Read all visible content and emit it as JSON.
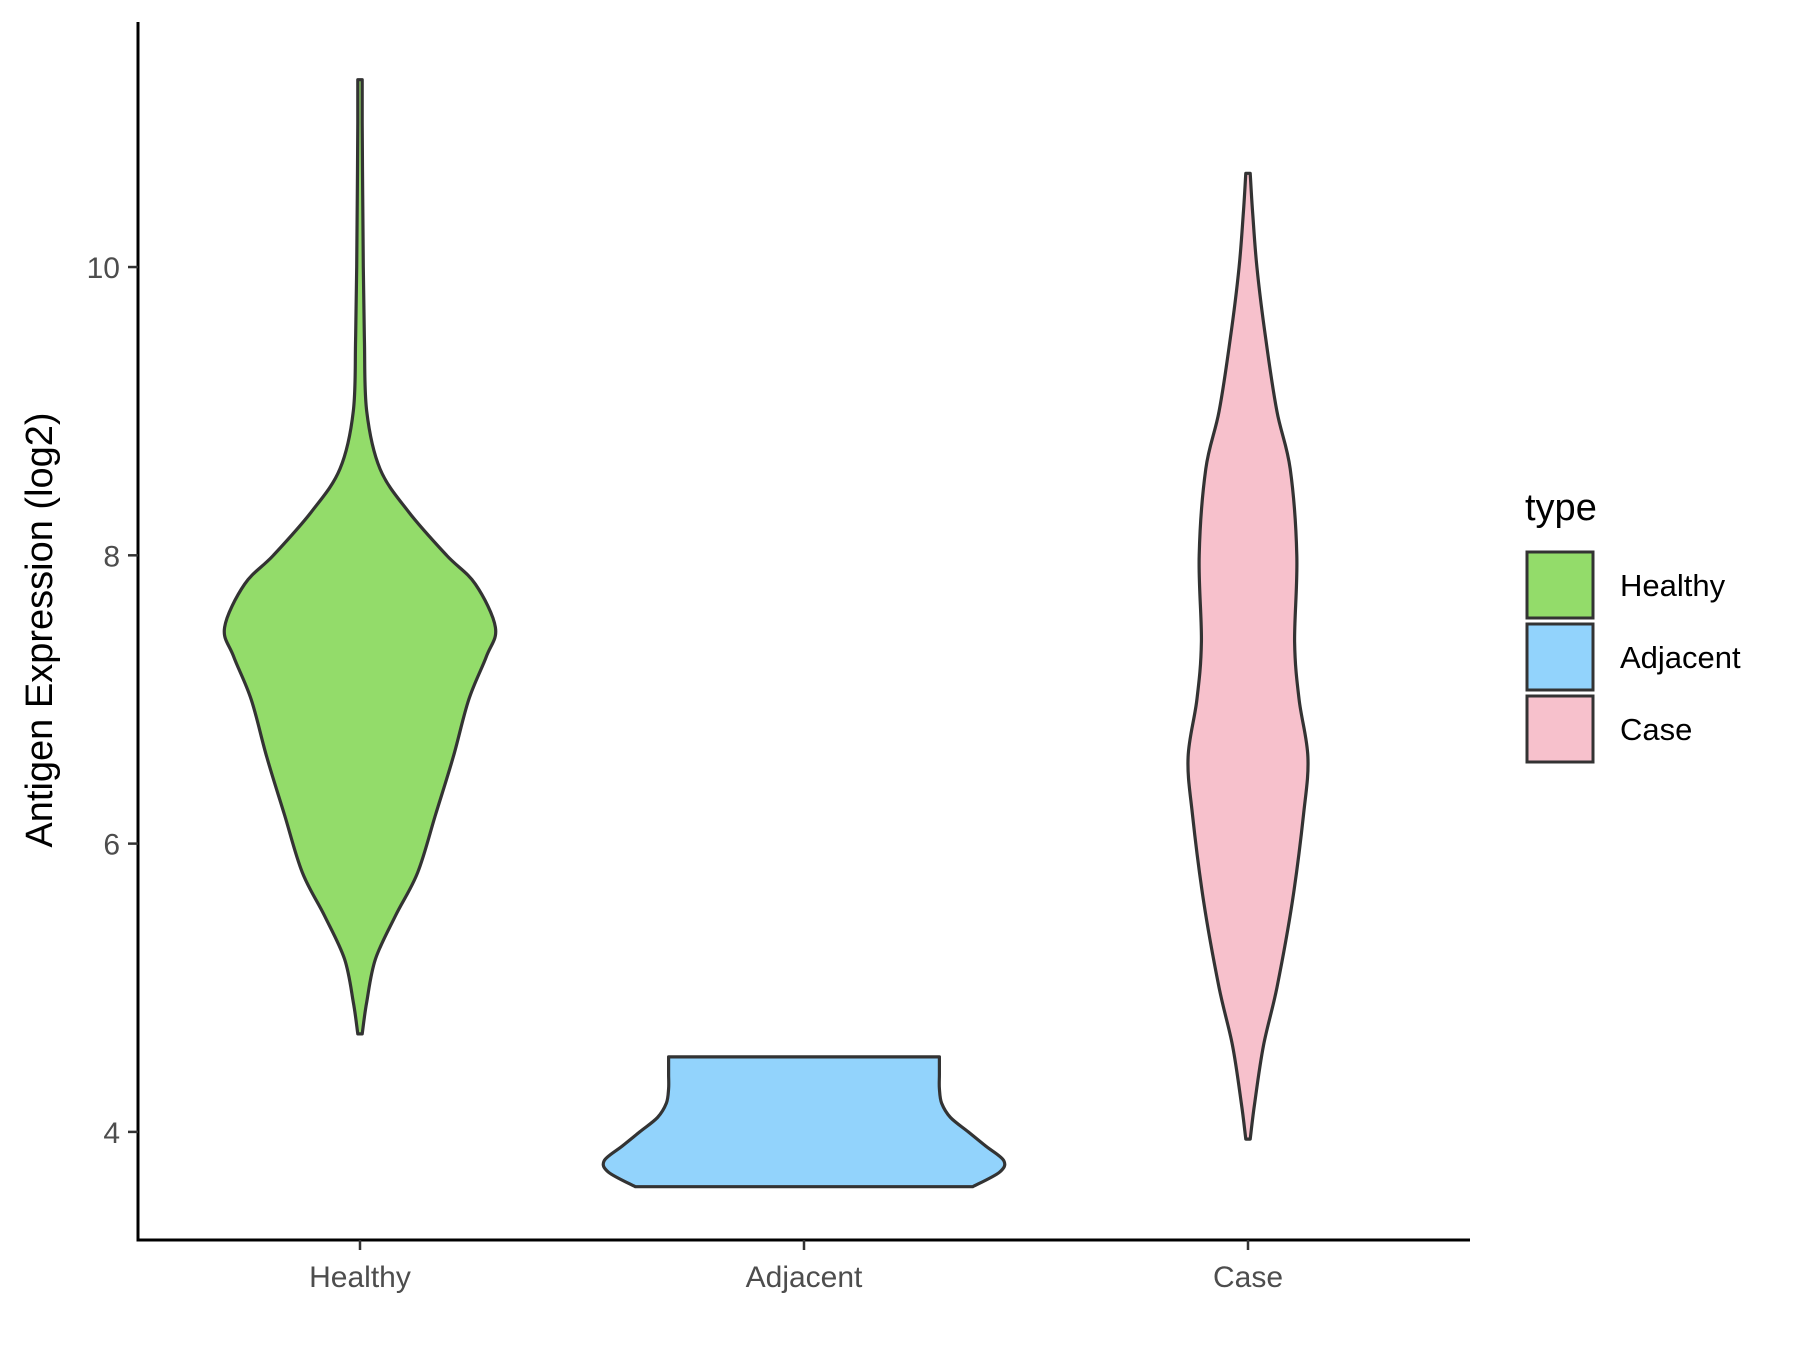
{
  "chart_data": {
    "type": "violin",
    "title": "",
    "xlabel": "",
    "ylabel": "Antigen Expression (log2)",
    "ylim": [
      3.25,
      11.7
    ],
    "yticks": [
      4,
      6,
      8,
      10
    ],
    "grid": false,
    "categories": [
      "Healthy",
      "Adjacent",
      "Case"
    ],
    "legend": {
      "title": "type",
      "position": "right",
      "entries": [
        "Healthy",
        "Adjacent",
        "Case"
      ]
    },
    "series": [
      {
        "name": "Healthy",
        "color": "#93dc6a",
        "profile": [
          [
            4.68,
            0.01
          ],
          [
            4.9,
            0.03
          ],
          [
            5.2,
            0.07
          ],
          [
            5.5,
            0.16
          ],
          [
            5.8,
            0.26
          ],
          [
            6.2,
            0.34
          ],
          [
            6.6,
            0.42
          ],
          [
            7.0,
            0.49
          ],
          [
            7.3,
            0.57
          ],
          [
            7.5,
            0.61
          ],
          [
            7.8,
            0.52
          ],
          [
            8.0,
            0.39
          ],
          [
            8.3,
            0.22
          ],
          [
            8.6,
            0.09
          ],
          [
            9.0,
            0.03
          ],
          [
            9.5,
            0.02
          ],
          [
            10.0,
            0.015
          ],
          [
            10.5,
            0.012
          ],
          [
            11.0,
            0.01
          ],
          [
            11.3,
            0.01
          ]
        ]
      },
      {
        "name": "Adjacent",
        "color": "#92d3fc",
        "profile": [
          [
            3.62,
            0.76
          ],
          [
            3.72,
            0.88
          ],
          [
            3.8,
            0.9
          ],
          [
            3.9,
            0.82
          ],
          [
            4.0,
            0.74
          ],
          [
            4.1,
            0.66
          ],
          [
            4.2,
            0.62
          ],
          [
            4.3,
            0.61
          ],
          [
            4.4,
            0.61
          ],
          [
            4.52,
            0.61
          ]
        ]
      },
      {
        "name": "Case",
        "color": "#f7c1cc",
        "profile": [
          [
            3.95,
            0.01
          ],
          [
            4.2,
            0.03
          ],
          [
            4.6,
            0.07
          ],
          [
            5.0,
            0.13
          ],
          [
            5.6,
            0.2
          ],
          [
            6.2,
            0.25
          ],
          [
            6.6,
            0.27
          ],
          [
            7.0,
            0.23
          ],
          [
            7.4,
            0.21
          ],
          [
            8.0,
            0.22
          ],
          [
            8.6,
            0.19
          ],
          [
            9.0,
            0.13
          ],
          [
            9.5,
            0.08
          ],
          [
            10.0,
            0.04
          ],
          [
            10.4,
            0.02
          ],
          [
            10.65,
            0.01
          ]
        ]
      }
    ]
  }
}
